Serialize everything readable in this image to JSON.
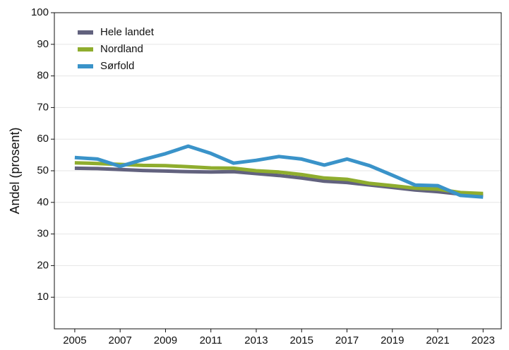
{
  "chart_data": {
    "type": "line",
    "ylabel": "Andel (prosent)",
    "x": [
      2005,
      2006,
      2007,
      2008,
      2009,
      2010,
      2011,
      2012,
      2013,
      2014,
      2015,
      2016,
      2017,
      2018,
      2019,
      2020,
      2021,
      2022,
      2023
    ],
    "series": [
      {
        "name": "Hele landet",
        "color": "#62627e",
        "values": [
          50.8,
          50.7,
          50.4,
          50.1,
          49.9,
          49.7,
          49.6,
          49.7,
          49.1,
          48.5,
          47.7,
          46.7,
          46.3,
          45.5,
          44.7,
          43.9,
          43.4,
          42.6,
          42.2
        ]
      },
      {
        "name": "Nordland",
        "color": "#8fad2e",
        "values": [
          52.5,
          52.3,
          52.0,
          51.7,
          51.6,
          51.3,
          50.9,
          50.8,
          50.0,
          49.6,
          48.8,
          47.7,
          47.3,
          46.0,
          45.3,
          44.5,
          44.2,
          43.1,
          42.8
        ]
      },
      {
        "name": "Sørfold",
        "color": "#3a93c9",
        "values": [
          54.2,
          53.7,
          51.4,
          53.5,
          55.4,
          57.8,
          55.5,
          52.4,
          53.3,
          54.5,
          53.7,
          51.8,
          53.7,
          51.6,
          48.6,
          45.5,
          45.3,
          42.2,
          41.7
        ]
      }
    ],
    "xlim": [
      2004.1,
      2023.8
    ],
    "xticks": [
      2005,
      2007,
      2009,
      2011,
      2013,
      2015,
      2017,
      2019,
      2021,
      2023
    ],
    "ylim": [
      0,
      100
    ],
    "yticks": [
      10,
      20,
      30,
      40,
      50,
      60,
      70,
      80,
      90,
      100
    ],
    "grid": true,
    "legend": "upper-left"
  }
}
